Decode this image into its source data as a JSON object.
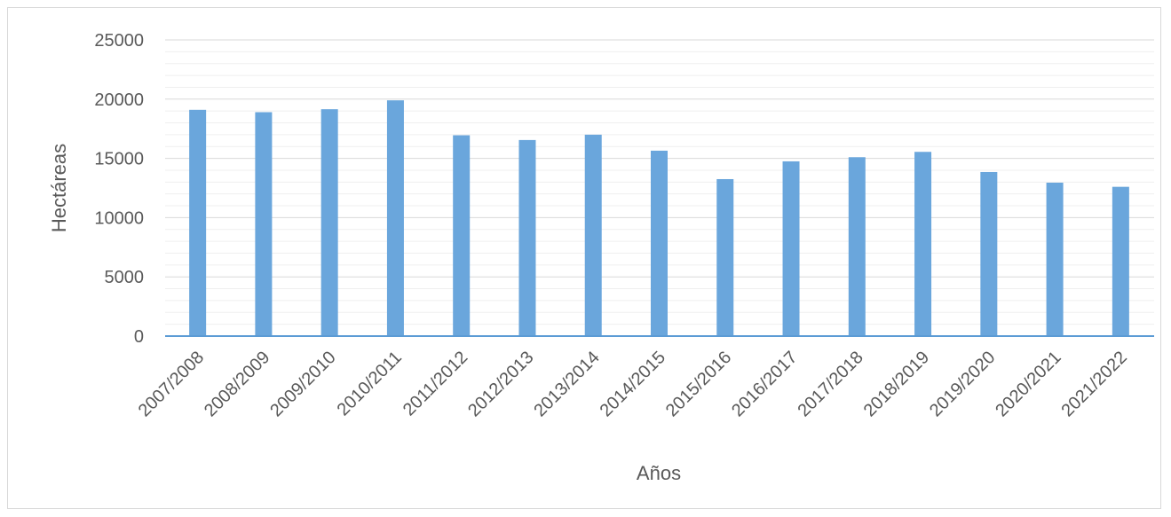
{
  "chart_data": {
    "type": "bar",
    "title": "",
    "xlabel": "Años",
    "ylabel": "Hectáreas",
    "categories": [
      "2007/2008",
      "2008/2009",
      "2009/2010",
      "2010/2011",
      "2011/2012",
      "2012/2013",
      "2013/2014",
      "2014/2015",
      "2015/2016",
      "2016/2017",
      "2017/2018",
      "2018/2019",
      "2019/2020",
      "2020/2021",
      "2021/2022"
    ],
    "values": [
      19100,
      18900,
      19150,
      19900,
      16950,
      16550,
      17000,
      15650,
      13250,
      14750,
      15100,
      15550,
      13850,
      12950,
      12600
    ],
    "ylim": [
      0,
      25000
    ],
    "yticks": [
      "0",
      "5000",
      "10000",
      "15000",
      "20000",
      "25000"
    ],
    "grid": true,
    "legend": "none",
    "bar_color": "#6aa6dc",
    "axis_color": "#5b9bd5",
    "grid_color": "#d9d9d9",
    "text_color": "#595959"
  }
}
